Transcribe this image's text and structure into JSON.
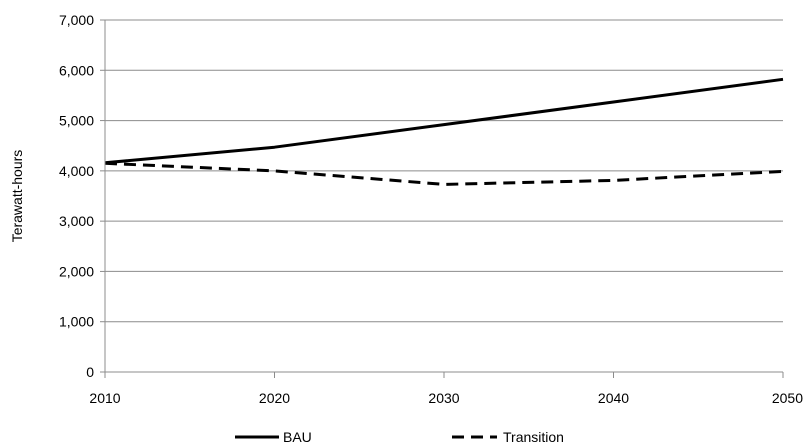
{
  "chart_data": {
    "type": "line",
    "title": "",
    "xlabel": "",
    "ylabel": "Terawatt-hours",
    "x": [
      2010,
      2020,
      2030,
      2040,
      2050
    ],
    "xlim": [
      2010,
      2050
    ],
    "ylim": [
      0,
      7000
    ],
    "y_ticks": [
      0,
      1000,
      2000,
      3000,
      4000,
      5000,
      6000,
      7000
    ],
    "y_tick_labels": [
      "0",
      "1,000",
      "2,000",
      "3,000",
      "4,000",
      "5,000",
      "6,000",
      "7,000"
    ],
    "x_tick_labels": [
      "2010",
      "2020",
      "2030",
      "2040",
      "2050"
    ],
    "grid": "horizontal",
    "legend_position": "bottom",
    "series": [
      {
        "name": "BAU",
        "style": "solid",
        "color": "#000000",
        "points": [
          [
            2010,
            4160
          ],
          [
            2020,
            4470
          ],
          [
            2030,
            4920
          ],
          [
            2040,
            5370
          ],
          [
            2050,
            5820
          ]
        ]
      },
      {
        "name": "Transition",
        "style": "dashed",
        "color": "#000000",
        "points": [
          [
            2010,
            4150
          ],
          [
            2020,
            4000
          ],
          [
            2030,
            3730
          ],
          [
            2040,
            3810
          ],
          [
            2050,
            3990
          ]
        ]
      }
    ]
  }
}
